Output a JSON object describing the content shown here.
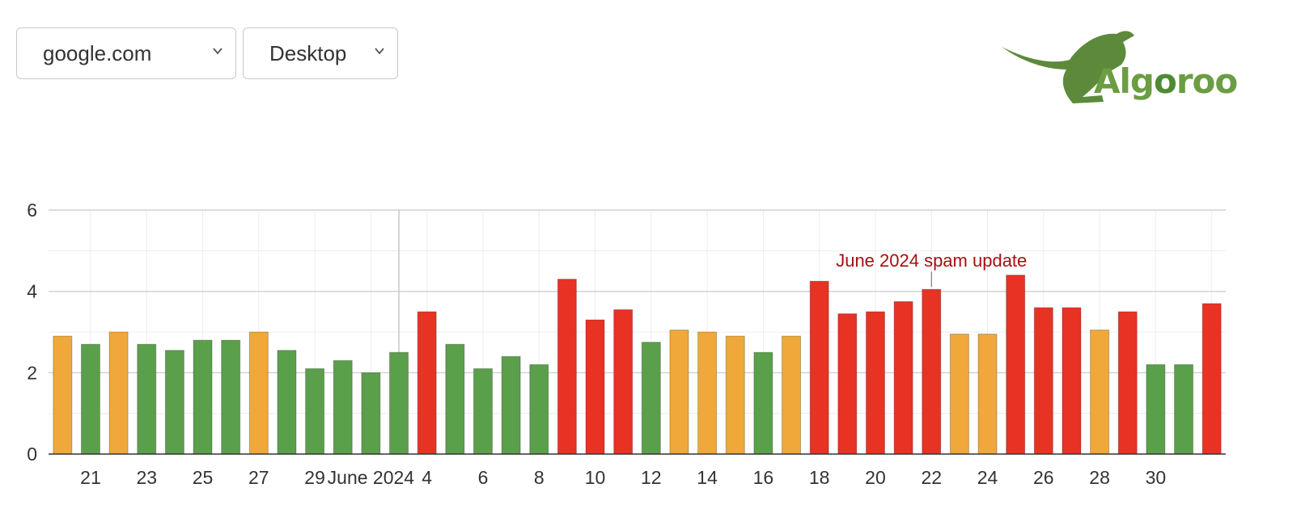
{
  "controls": {
    "domain": "google.com",
    "device": "Desktop"
  },
  "logo": {
    "part1": "Alg",
    "part2": "o",
    "part3": "roo"
  },
  "colors": {
    "green": "#5aa04a",
    "orange": "#f0a83a",
    "red": "#e83224"
  },
  "chart_data": {
    "type": "bar",
    "title": "",
    "xlabel": "",
    "ylabel": "",
    "ylim": [
      0,
      6
    ],
    "yticks": [
      0,
      2,
      4,
      6
    ],
    "grid": true,
    "categories": [
      "May 20",
      "May 21",
      "May 22",
      "May 23",
      "May 24",
      "May 25",
      "May 26",
      "May 27",
      "May 28",
      "May 29",
      "May 30",
      "May 31",
      "Jun 1",
      "Jun 2",
      "Jun 3",
      "Jun 4",
      "Jun 5",
      "Jun 6",
      "Jun 7",
      "Jun 8",
      "Jun 9",
      "Jun 10",
      "Jun 11",
      "Jun 12",
      "Jun 13",
      "Jun 14",
      "Jun 15",
      "Jun 16",
      "Jun 17",
      "Jun 18",
      "Jun 19",
      "Jun 20",
      "Jun 21",
      "Jun 22",
      "Jun 23",
      "Jun 24",
      "Jun 25",
      "Jun 26",
      "Jun 27",
      "Jun 28",
      "Jun 29",
      "Jun 30"
    ],
    "values": [
      2.9,
      2.7,
      3.0,
      2.7,
      2.55,
      2.8,
      2.8,
      3.0,
      2.55,
      2.1,
      2.3,
      2.0,
      2.5,
      3.5,
      2.7,
      2.1,
      2.4,
      2.2,
      4.3,
      3.3,
      3.55,
      2.75,
      3.05,
      3.0,
      2.9,
      2.5,
      2.9,
      4.25,
      3.45,
      3.5,
      3.75,
      4.05,
      2.95,
      2.95,
      4.4,
      3.6,
      3.6,
      3.05,
      3.5,
      2.2,
      2.2,
      3.7
    ],
    "bar_colors": [
      "orange",
      "green",
      "orange",
      "green",
      "green",
      "green",
      "green",
      "orange",
      "green",
      "green",
      "green",
      "green",
      "green",
      "red",
      "green",
      "green",
      "green",
      "green",
      "red",
      "red",
      "red",
      "green",
      "orange",
      "orange",
      "orange",
      "green",
      "orange",
      "red",
      "red",
      "red",
      "red",
      "red",
      "orange",
      "orange",
      "red",
      "red",
      "red",
      "orange",
      "red",
      "green",
      "green",
      "red"
    ],
    "x_tick_labels": [
      "21",
      "23",
      "25",
      "27",
      "29",
      "June 2024",
      "4",
      "6",
      "8",
      "10",
      "12",
      "14",
      "16",
      "18",
      "20",
      "22",
      "24",
      "26",
      "28",
      "30"
    ],
    "annotation": {
      "text": "June 2024 spam update",
      "date": "Jun 20"
    }
  }
}
